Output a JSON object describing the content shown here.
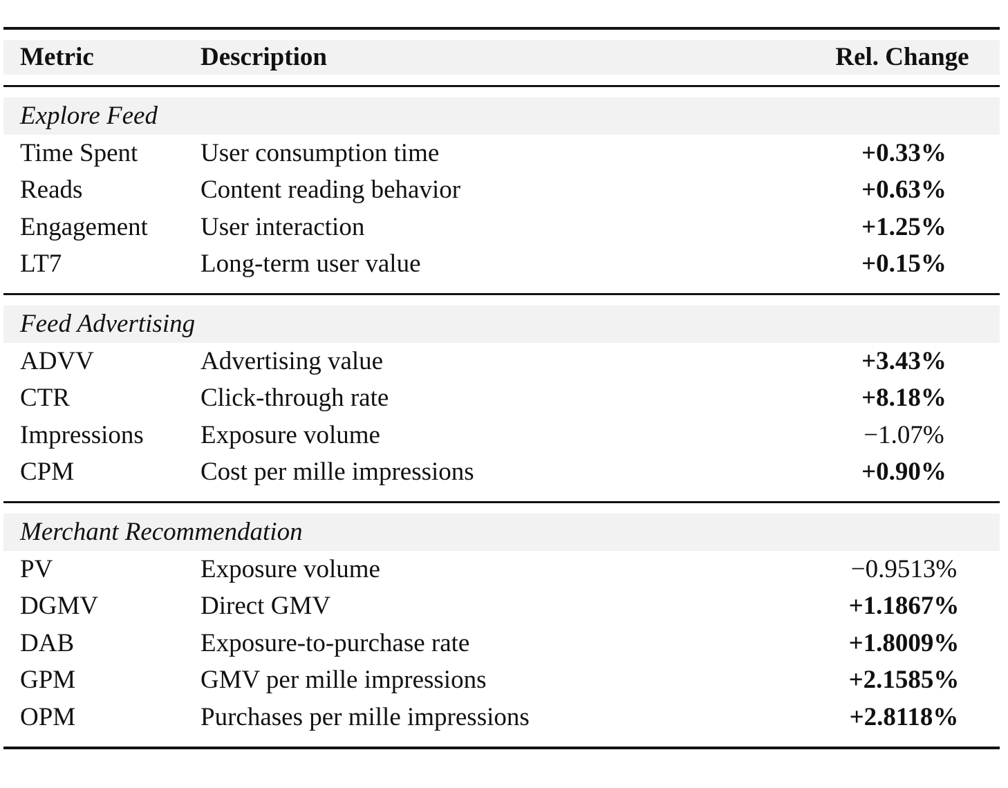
{
  "header": {
    "metric": "Metric",
    "description": "Description",
    "change": "Rel. Change"
  },
  "groups": [
    {
      "name": "Explore Feed",
      "rows": [
        {
          "metric": "Time Spent",
          "description": "User consumption time",
          "change": "+0.33%",
          "bold": true
        },
        {
          "metric": "Reads",
          "description": "Content reading behavior",
          "change": "+0.63%",
          "bold": true
        },
        {
          "metric": "Engagement",
          "description": "User interaction",
          "change": "+1.25%",
          "bold": true
        },
        {
          "metric": "LT7",
          "description": "Long-term user value",
          "change": "+0.15%",
          "bold": true
        }
      ]
    },
    {
      "name": "Feed Advertising",
      "rows": [
        {
          "metric": "ADVV",
          "description": "Advertising value",
          "change": "+3.43%",
          "bold": true
        },
        {
          "metric": "CTR",
          "description": "Click-through rate",
          "change": "+8.18%",
          "bold": true
        },
        {
          "metric": "Impressions",
          "description": "Exposure volume",
          "change": "−1.07%",
          "bold": false
        },
        {
          "metric": "CPM",
          "description": "Cost per mille impressions",
          "change": "+0.90%",
          "bold": true
        }
      ]
    },
    {
      "name": "Merchant Recommendation",
      "rows": [
        {
          "metric": "PV",
          "description": "Exposure volume",
          "change": "−0.9513%",
          "bold": false
        },
        {
          "metric": "DGMV",
          "description": "Direct GMV",
          "change": "+1.1867%",
          "bold": true
        },
        {
          "metric": "DAB",
          "description": "Exposure-to-purchase rate",
          "change": "+1.8009%",
          "bold": true
        },
        {
          "metric": "GPM",
          "description": "GMV per mille impressions",
          "change": "+2.1585%",
          "bold": true
        },
        {
          "metric": "OPM",
          "description": "Purchases per mille impressions",
          "change": "+2.8118%",
          "bold": true
        }
      ]
    }
  ]
}
